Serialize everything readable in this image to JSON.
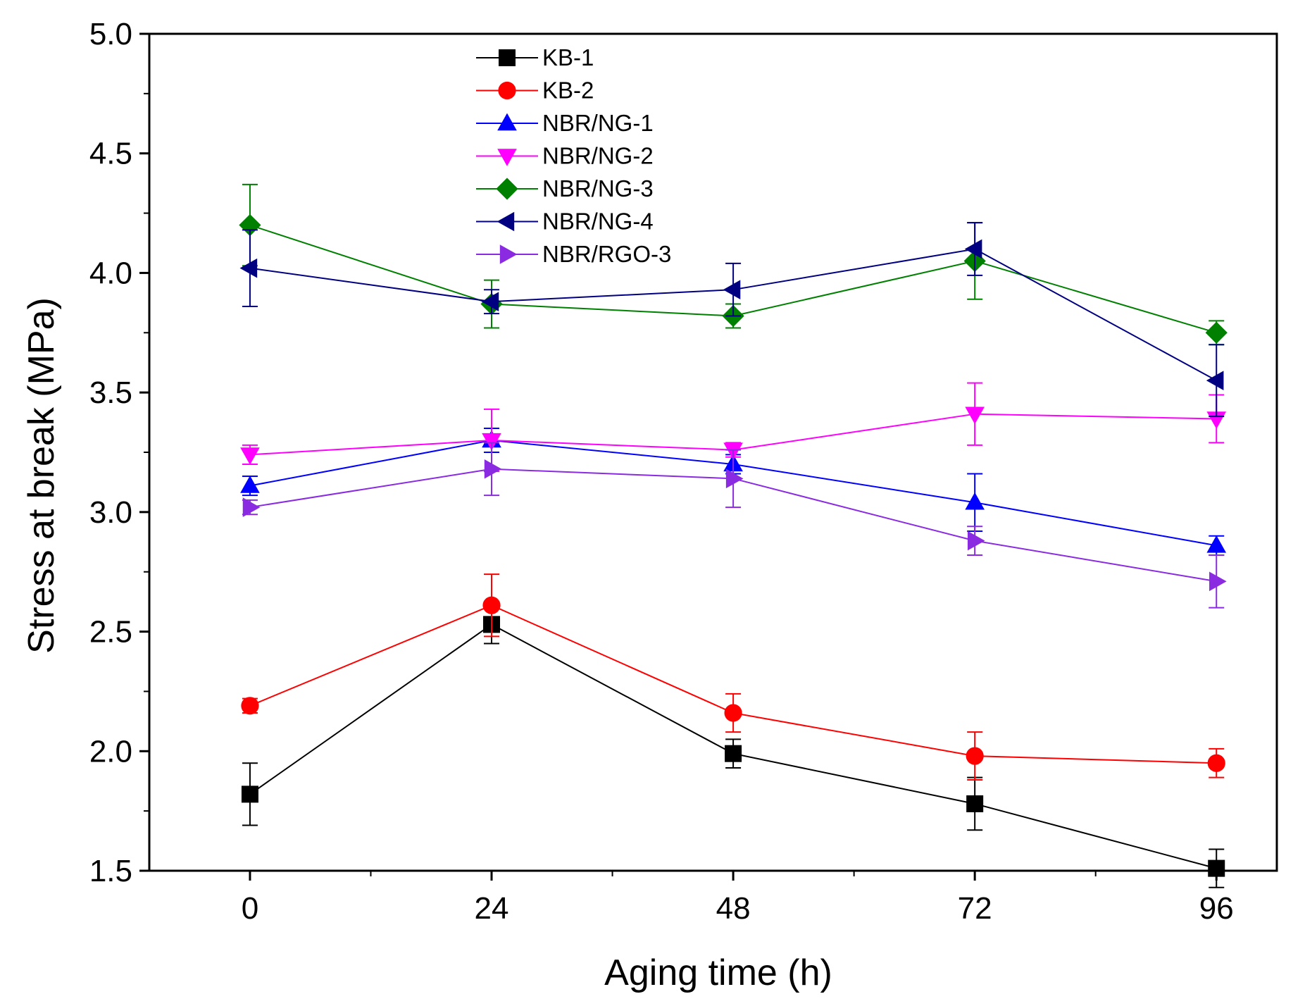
{
  "chart_data": {
    "type": "line",
    "title": "",
    "xlabel": "Aging time (h)",
    "ylabel": "Stress at break (MPa)",
    "x": [
      0,
      24,
      48,
      72,
      96
    ],
    "x_tick_labels": [
      "0",
      "24",
      "48",
      "72",
      "96"
    ],
    "xlim": [
      -10,
      102
    ],
    "ylim": [
      1.5,
      5.0
    ],
    "y_ticks": [
      1.5,
      2.0,
      2.5,
      3.0,
      3.5,
      4.0,
      4.5,
      5.0
    ],
    "y_tick_labels": [
      "1.5",
      "2.0",
      "2.5",
      "3.0",
      "3.5",
      "4.0",
      "4.5",
      "5.0"
    ],
    "grid": false,
    "legend_position": "top-left",
    "series": [
      {
        "name": "KB-1",
        "color": "#000000",
        "marker": "square",
        "values": [
          1.82,
          2.53,
          1.99,
          1.78,
          1.51
        ],
        "errors": [
          0.13,
          0.08,
          0.06,
          0.11,
          0.08
        ]
      },
      {
        "name": "KB-2",
        "color": "#ff0000",
        "marker": "circle",
        "values": [
          2.19,
          2.61,
          2.16,
          1.98,
          1.95
        ],
        "errors": [
          0.03,
          0.13,
          0.08,
          0.1,
          0.06
        ]
      },
      {
        "name": "NBR/NG-1",
        "color": "#0000ff",
        "marker": "triangle-up",
        "values": [
          3.11,
          3.3,
          3.2,
          3.04,
          2.86
        ],
        "errors": [
          0.04,
          0.05,
          0.04,
          0.12,
          0.04
        ]
      },
      {
        "name": "NBR/NG-2",
        "color": "#ff00ff",
        "marker": "triangle-down",
        "values": [
          3.24,
          3.3,
          3.26,
          3.41,
          3.39
        ],
        "errors": [
          0.04,
          0.13,
          0.03,
          0.13,
          0.1
        ]
      },
      {
        "name": "NBR/NG-3",
        "color": "#008000",
        "marker": "diamond",
        "values": [
          4.2,
          3.87,
          3.82,
          4.05,
          3.75
        ],
        "errors": [
          0.17,
          0.1,
          0.05,
          0.16,
          0.05
        ]
      },
      {
        "name": "NBR/NG-4",
        "color": "#000080",
        "marker": "triangle-left",
        "values": [
          4.02,
          3.88,
          3.93,
          4.1,
          3.55
        ],
        "errors": [
          0.16,
          0.05,
          0.11,
          0.11,
          0.15
        ]
      },
      {
        "name": "NBR/RGO-3",
        "color": "#8a2be2",
        "marker": "triangle-right",
        "values": [
          3.02,
          3.18,
          3.14,
          2.88,
          2.71
        ],
        "errors": [
          0.03,
          0.11,
          0.12,
          0.06,
          0.11
        ]
      }
    ]
  }
}
